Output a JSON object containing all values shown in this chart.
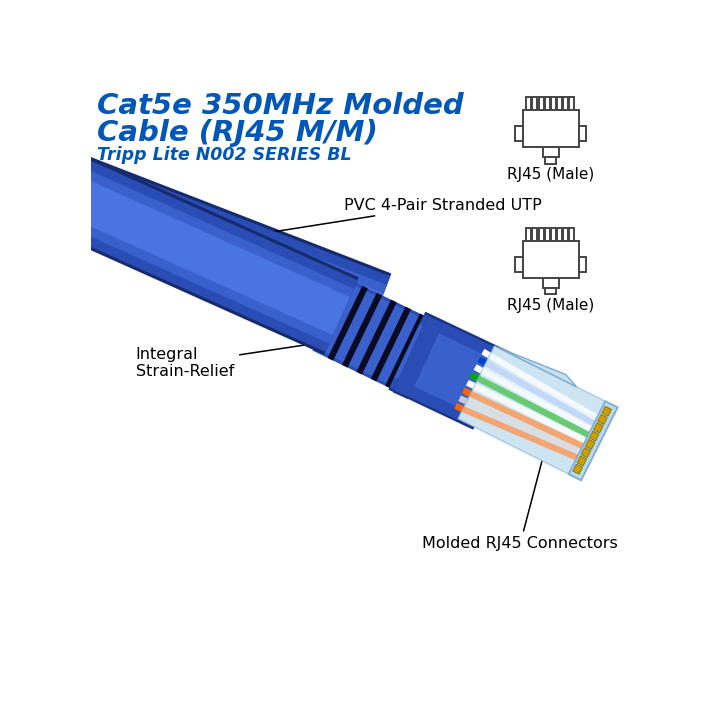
{
  "title_line1": "Cat5e 350MHz Molded",
  "title_line2": "Cable (RJ45 M/M)",
  "subtitle": "Tripp Lite N002 SERIES BL",
  "title_color": "#0057b8",
  "subtitle_color": "#0057b8",
  "bg_color": "#ffffff",
  "label1": "PVC 4-Pair Stranded UTP",
  "label2": "Integral\nStrain-Relief",
  "label3": "Molded RJ45 Connectors",
  "rj45_label": "RJ45 (Male)",
  "cable_blue": "#2a4db5",
  "cable_blue_mid": "#3a60cc",
  "cable_blue_light": "#4a75e0",
  "cable_blue_dark": "#1a3380",
  "cable_blue_shadow": "#162a6e",
  "connector_clear": "#d0e8f5",
  "connector_clear2": "#b8d8ed",
  "connector_clear3": "#e8f4fc",
  "connector_outline": "#7aaccf",
  "groove_dark": "#0a0a22",
  "wire_colors": [
    "#ff6600",
    "#cccccc",
    "#ff6600",
    "#ffffff",
    "#00aa00",
    "#ffffff",
    "#0044cc",
    "#ffffff"
  ],
  "diagram_outline": "#444444",
  "diagram_fill": "#ffffff"
}
